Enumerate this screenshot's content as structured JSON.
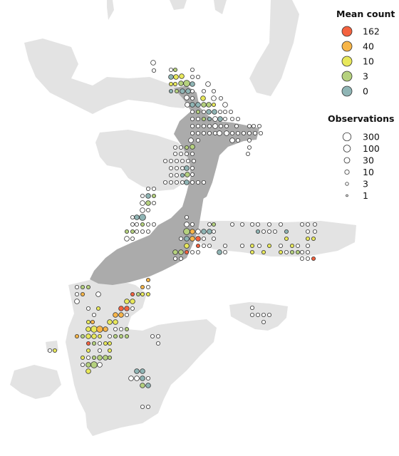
{
  "legend_colour": {
    "title": "Mean count",
    "entries": [
      {
        "label": "162",
        "color": "#f4623f"
      },
      {
        "label": "40",
        "color": "#f7b548"
      },
      {
        "label": "10",
        "color": "#e8e85a"
      },
      {
        "label": "3",
        "color": "#b5d17e"
      },
      {
        "label": "0",
        "color": "#8fb5b5"
      }
    ]
  },
  "legend_size": {
    "title": "Observations",
    "entries": [
      {
        "label": "300",
        "count": 300
      },
      {
        "label": "100",
        "count": 100
      },
      {
        "label": "30",
        "count": 30
      },
      {
        "label": "10",
        "count": 10
      },
      {
        "label": "3",
        "count": 3
      },
      {
        "label": "1",
        "count": 1
      }
    ]
  },
  "colors": {
    "land_context": "#e3e3e3",
    "land_focus": "#ababab",
    "empty_cell": "#ffffff",
    "point_outline": "#333333"
  }
}
